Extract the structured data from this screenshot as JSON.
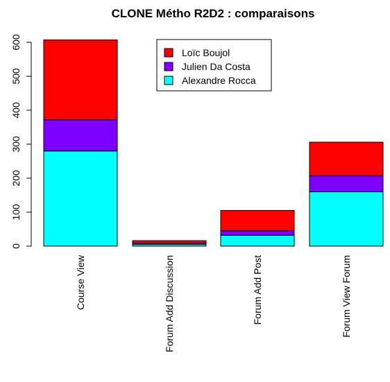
{
  "chart_data": {
    "type": "bar",
    "stacked": true,
    "title": "CLONE Métho R2D2 : comparaisons",
    "xlabel": "",
    "ylabel": "",
    "ylim": [
      0,
      620
    ],
    "yticks": [
      0,
      100,
      200,
      300,
      400,
      500,
      600
    ],
    "categories": [
      "Course View",
      "Forum Add Discussion",
      "Forum Add Post",
      "Forum View Forum"
    ],
    "series": [
      {
        "name": "Alexandre Rocca",
        "color": "#00ffff",
        "values": [
          280,
          5,
          32,
          160
        ]
      },
      {
        "name": "Julien Da Costa",
        "color": "#8000ff",
        "values": [
          92,
          4,
          13,
          47
        ]
      },
      {
        "name": "Loïc Boujol",
        "color": "#ff0000",
        "values": [
          235,
          7,
          60,
          99
        ]
      }
    ],
    "legend": {
      "position": "top-center",
      "order": [
        "Loïc Boujol",
        "Julien Da Costa",
        "Alexandre Rocca"
      ]
    },
    "grid": false
  }
}
